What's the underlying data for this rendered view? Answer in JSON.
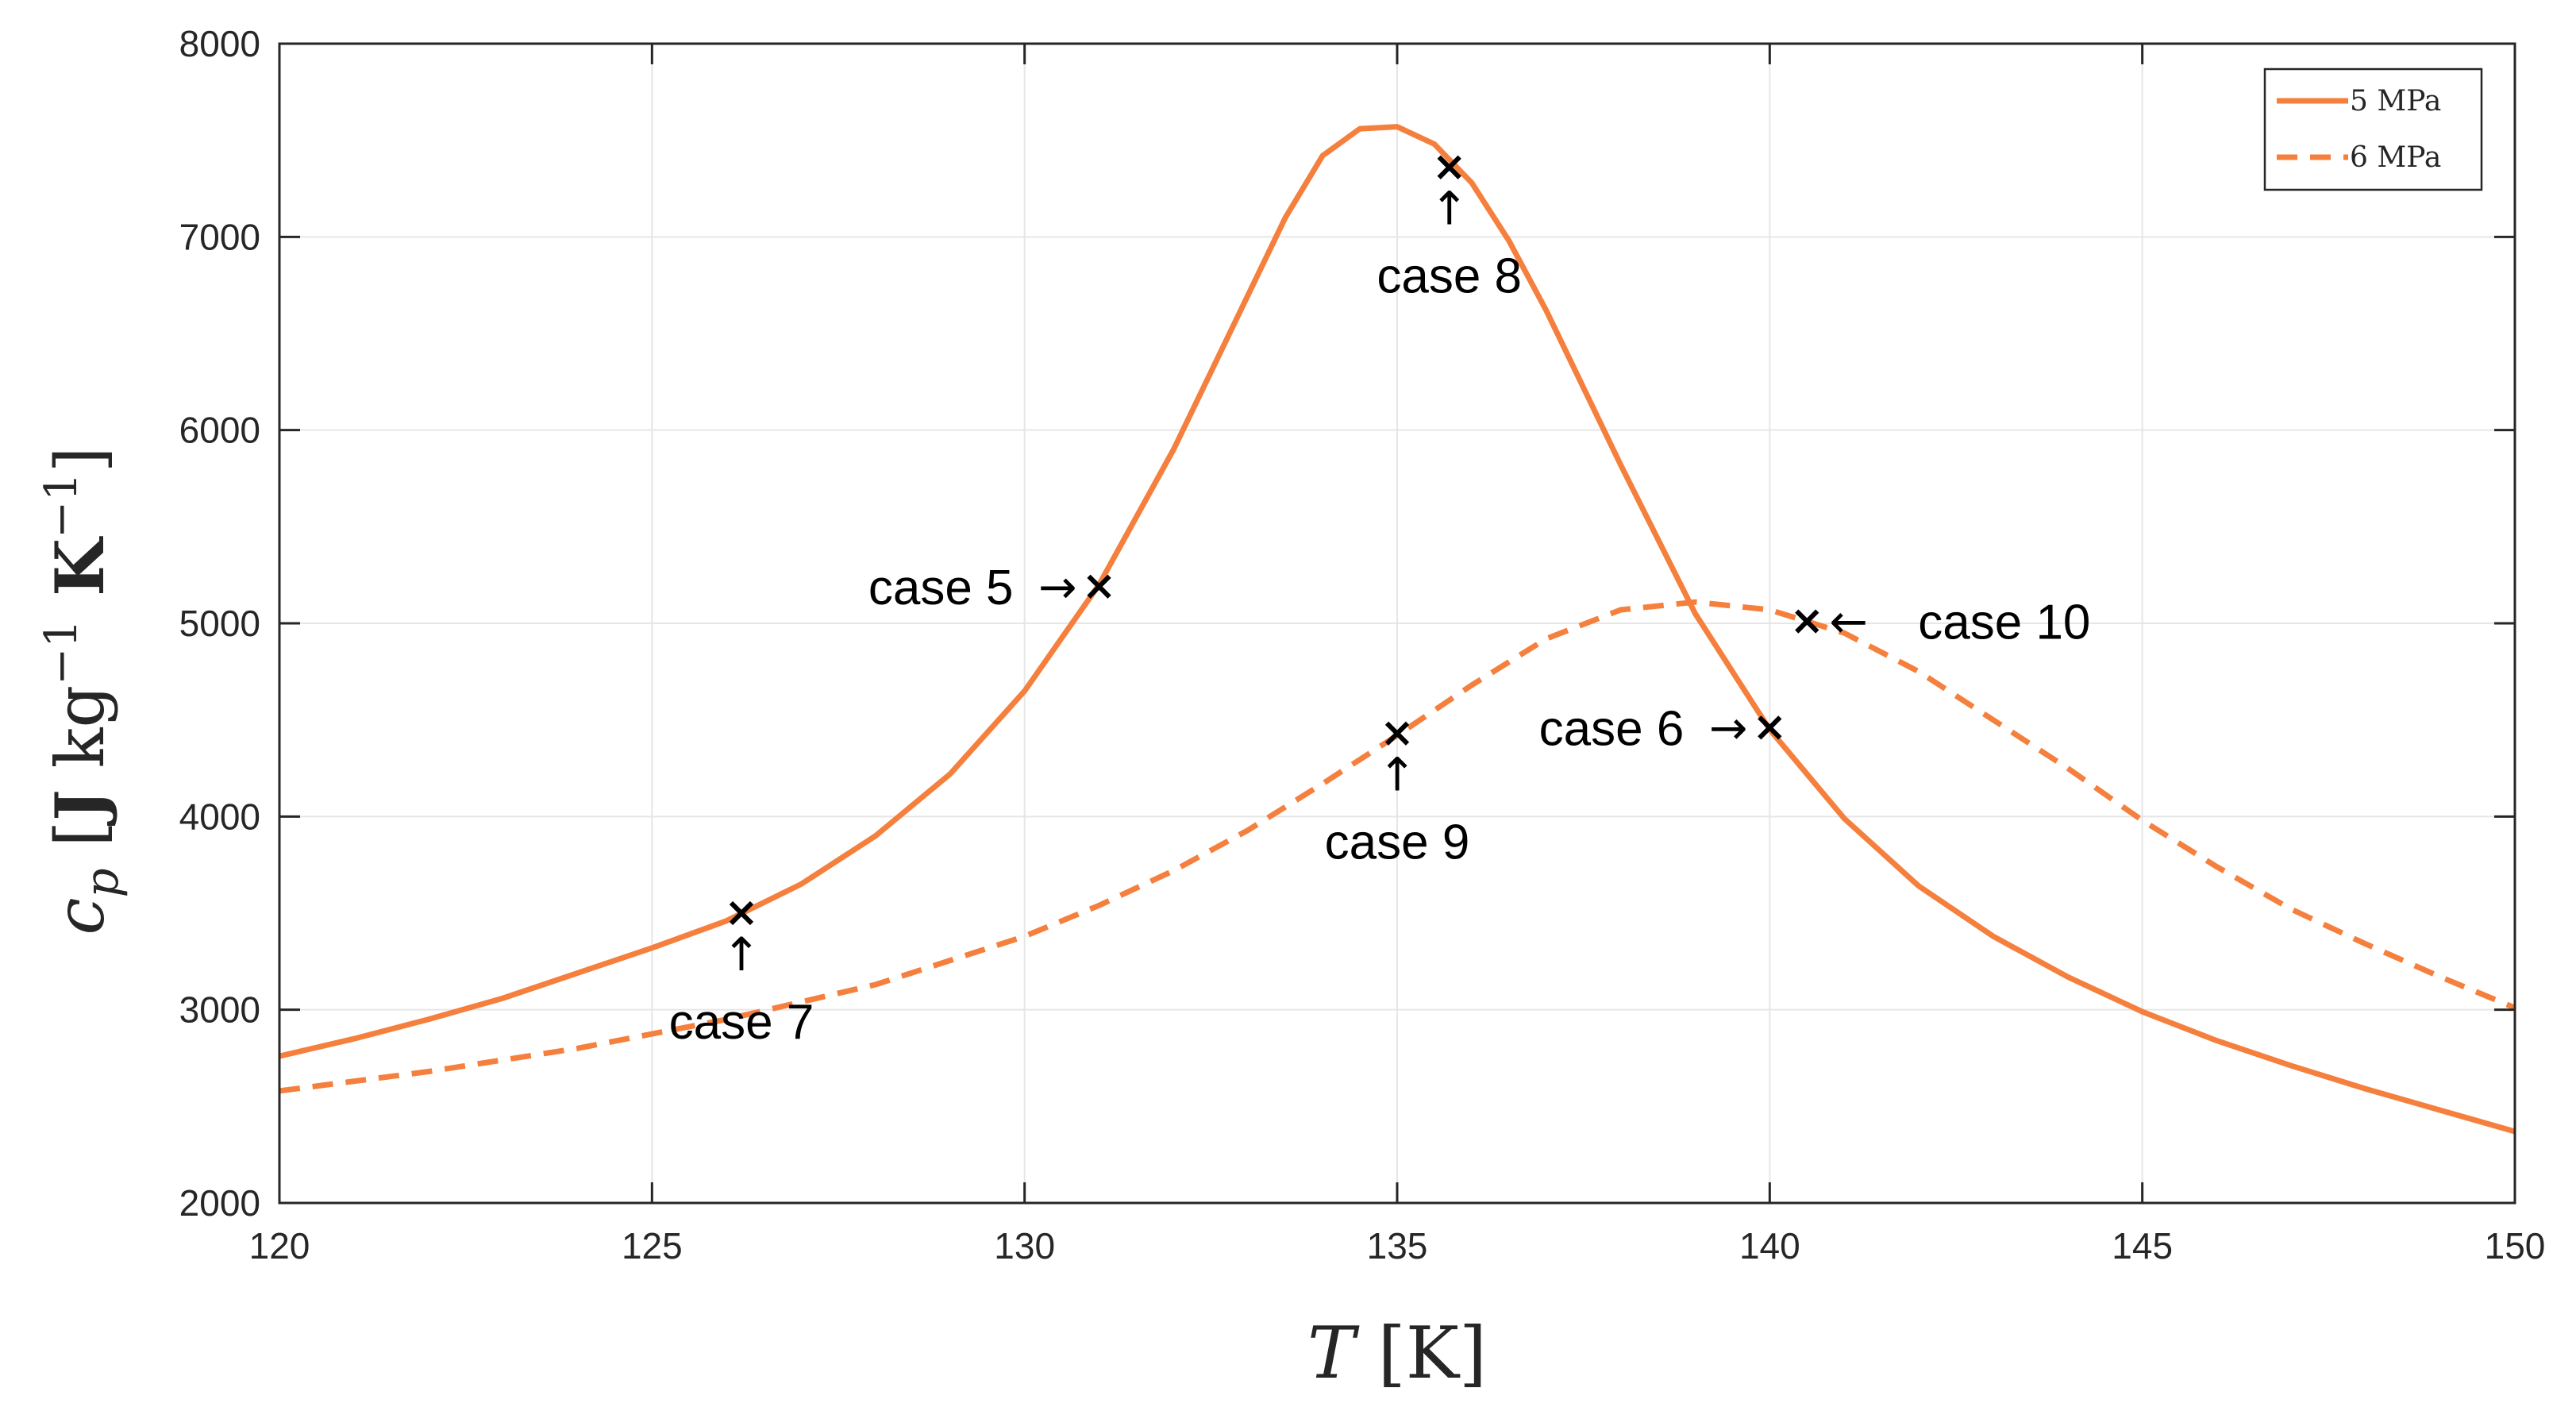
{
  "chart_data": {
    "type": "line",
    "xlabel": "T [K]",
    "ylabel": "c_p [J kg^-1 K^-1]",
    "xlim": [
      120,
      150
    ],
    "ylim": [
      2000,
      8000
    ],
    "x_ticks": [
      120,
      125,
      130,
      135,
      140,
      145,
      150
    ],
    "y_ticks": [
      2000,
      3000,
      4000,
      5000,
      6000,
      7000,
      8000
    ],
    "grid": true,
    "legend_position": "top-right",
    "colors": {
      "series": "#F5803E",
      "marker": "#000000",
      "axis": "#262626",
      "grid": "#e6e6e6"
    },
    "series": [
      {
        "name": "5 MPa",
        "style": "solid",
        "x": [
          120,
          121,
          122,
          123,
          124,
          125,
          126,
          127,
          128,
          129,
          130,
          131,
          132,
          133,
          133.5,
          134,
          134.5,
          135,
          135.5,
          136,
          136.5,
          137,
          138,
          139,
          140,
          141,
          142,
          143,
          144,
          145,
          146,
          147,
          148,
          149,
          150
        ],
        "y": [
          2760,
          2850,
          2950,
          3060,
          3190,
          3320,
          3460,
          3650,
          3900,
          4220,
          4650,
          5200,
          5900,
          6700,
          7100,
          7420,
          7560,
          7570,
          7480,
          7280,
          6980,
          6620,
          5820,
          5050,
          4450,
          3990,
          3640,
          3380,
          3170,
          2990,
          2840,
          2710,
          2590,
          2480,
          2370
        ]
      },
      {
        "name": "6 MPa",
        "style": "dashed",
        "x": [
          120,
          122,
          124,
          126,
          128,
          130,
          131,
          132,
          133,
          134,
          135,
          136,
          137,
          138,
          139,
          140,
          141,
          142,
          143,
          144,
          145,
          146,
          147,
          148,
          149,
          150
        ],
        "y": [
          2580,
          2680,
          2800,
          2950,
          3130,
          3380,
          3540,
          3720,
          3930,
          4170,
          4420,
          4680,
          4920,
          5070,
          5110,
          5070,
          4950,
          4750,
          4500,
          4250,
          3980,
          3740,
          3520,
          3340,
          3170,
          3010
        ]
      }
    ],
    "markers": [
      {
        "label": "case 5",
        "x": 131.0,
        "y": 5190,
        "label_text": "case 5",
        "arrow": "→",
        "arrow_dir": "right",
        "label_side": "left"
      },
      {
        "label": "case 6",
        "x": 140.0,
        "y": 4460,
        "label_text": "case 6",
        "arrow": "→",
        "arrow_dir": "right",
        "label_side": "left"
      },
      {
        "label": "case 7",
        "x": 126.2,
        "y": 3500,
        "label_text": "case 7",
        "arrow": "↑",
        "arrow_dir": "up",
        "label_side": "below"
      },
      {
        "label": "case 8",
        "x": 135.7,
        "y": 7360,
        "label_text": "case 8",
        "arrow": "↑",
        "arrow_dir": "up",
        "label_side": "below"
      },
      {
        "label": "case 9",
        "x": 135.0,
        "y": 4430,
        "label_text": "case 9",
        "arrow": "↑",
        "arrow_dir": "up",
        "label_side": "below"
      },
      {
        "label": "case 10",
        "x": 140.5,
        "y": 5010,
        "label_text": "case 10",
        "arrow": "←",
        "arrow_dir": "left",
        "label_side": "right"
      }
    ]
  }
}
